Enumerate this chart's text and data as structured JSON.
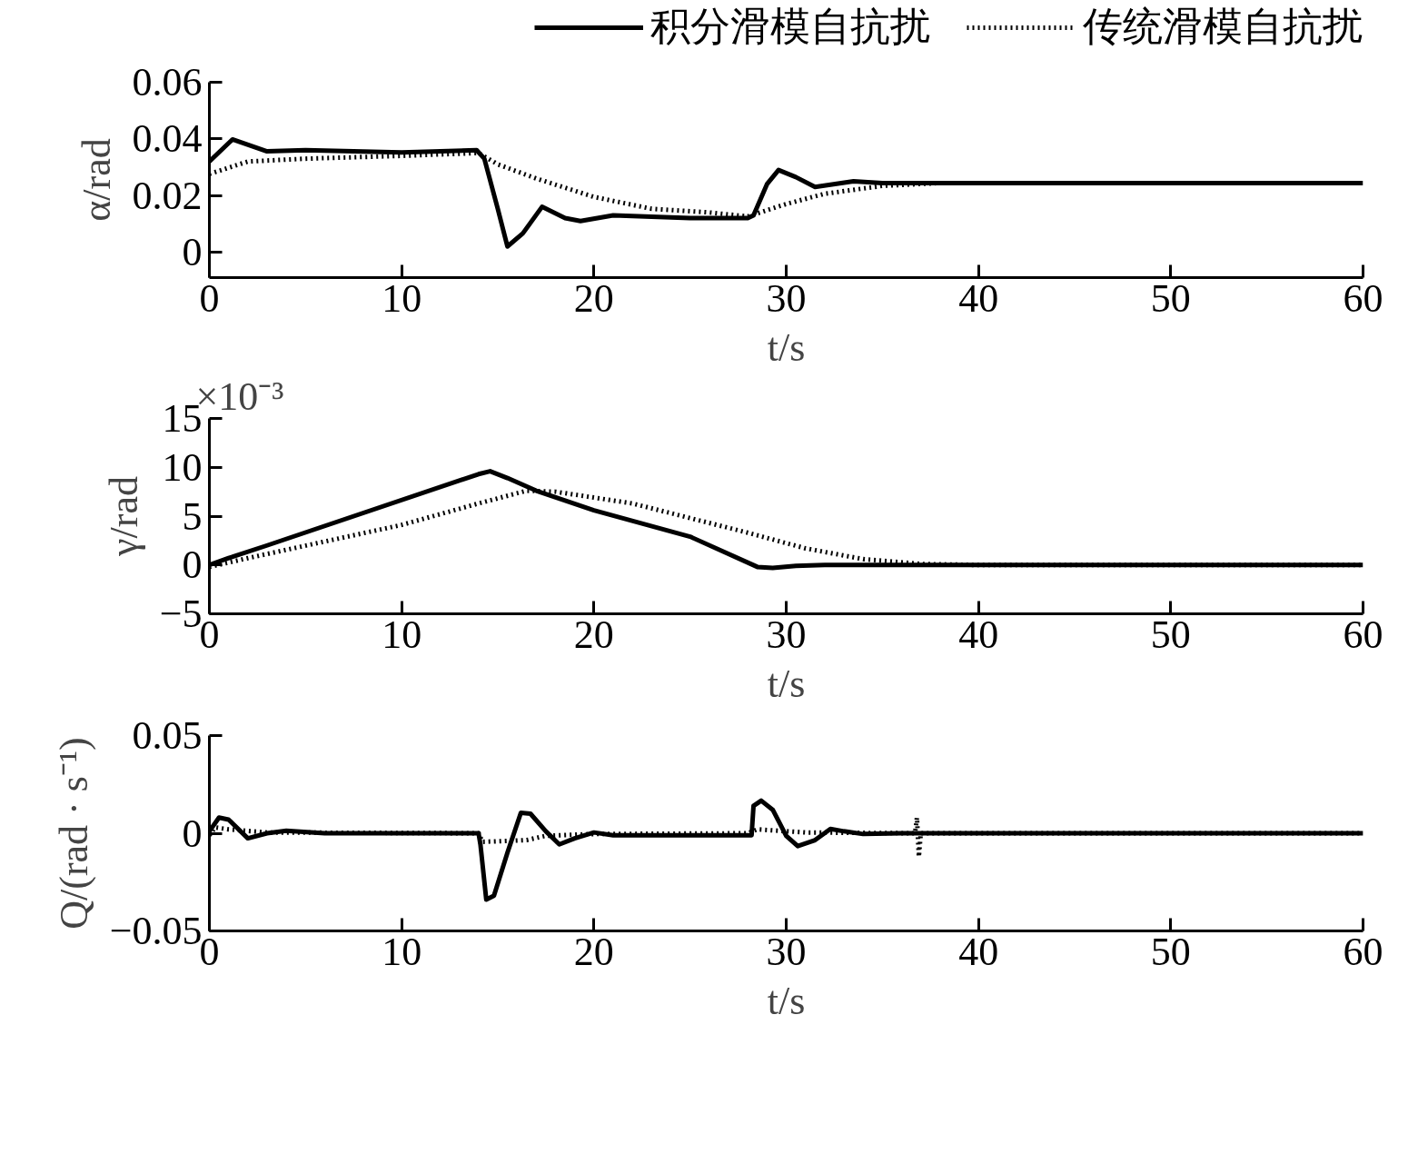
{
  "chart_data": [
    {
      "type": "line",
      "xlabel": "t/s",
      "ylabel": "α/rad",
      "xlim": [
        0,
        60
      ],
      "xticks": [
        0,
        10,
        20,
        30,
        40,
        50,
        60
      ],
      "ylim": [
        -0.009,
        0.06
      ],
      "yticks": [
        0,
        0.02,
        0.04,
        0.06
      ],
      "grid": false,
      "legend": "top",
      "marker": "none",
      "series": [
        {
          "name": "积分滑模自抗扰",
          "color": "#000000",
          "line_style": "solid",
          "x": [
            0,
            1.2,
            3,
            5,
            10,
            13.9,
            14.3,
            15,
            15.5,
            16.3,
            17.3,
            18.5,
            19.3,
            21,
            25,
            28,
            28.3,
            29,
            29.6,
            30.5,
            31.5,
            33.5,
            35,
            60
          ],
          "values": [
            0.032,
            0.0398,
            0.0356,
            0.036,
            0.0352,
            0.036,
            0.033,
            0.0153,
            0.002,
            0.0066,
            0.016,
            0.012,
            0.011,
            0.013,
            0.012,
            0.012,
            0.013,
            0.024,
            0.029,
            0.0265,
            0.023,
            0.025,
            0.0244,
            0.0244
          ]
        },
        {
          "name": "传统滑模自抗扰",
          "color": "#000000",
          "line_style": "dotted",
          "x": [
            0,
            2,
            5,
            10,
            14,
            15,
            17,
            20,
            23,
            26,
            28,
            30,
            32,
            35,
            38,
            60
          ],
          "values": [
            0.0276,
            0.032,
            0.033,
            0.034,
            0.035,
            0.031,
            0.026,
            0.0195,
            0.0153,
            0.014,
            0.0126,
            0.017,
            0.0206,
            0.0234,
            0.0244,
            0.0244
          ]
        }
      ]
    },
    {
      "type": "line",
      "xlabel": "t/s",
      "ylabel": "γ/rad",
      "annotations": [
        "×10⁻³"
      ],
      "xlim": [
        0,
        60
      ],
      "xticks": [
        0,
        10,
        20,
        30,
        40,
        50,
        60
      ],
      "ylim": [
        -5,
        15
      ],
      "yticks": [
        {
          "value": -5,
          "label": "−5"
        },
        0,
        5,
        10,
        15
      ],
      "grid": false,
      "legend": false,
      "marker": "none",
      "series": [
        {
          "color": "#000000",
          "line_style": "solid",
          "x": [
            0,
            1,
            3,
            14,
            14.6,
            15.5,
            17,
            20,
            25,
            28.5,
            29.3,
            30.5,
            32,
            60
          ],
          "values": [
            0,
            0.7,
            2,
            9.3,
            9.6,
            8.9,
            7.6,
            5.6,
            2.9,
            -0.2,
            -0.3,
            -0.1,
            0,
            0
          ]
        },
        {
          "color": "#000000",
          "line_style": "dotted",
          "x": [
            0,
            2,
            10,
            14,
            16.5,
            18,
            22,
            25,
            28,
            31,
            34,
            37,
            40,
            60
          ],
          "values": [
            -0.2,
            0.7,
            4.1,
            6.3,
            7.6,
            7.5,
            6.3,
            4.8,
            3.3,
            1.7,
            0.6,
            0.1,
            0,
            0
          ]
        }
      ]
    },
    {
      "type": "line",
      "xlabel": "t/s",
      "ylabel": "Q/(rad · s⁻¹)",
      "xlim": [
        0,
        60
      ],
      "xticks": [
        0,
        10,
        20,
        30,
        40,
        50,
        60
      ],
      "ylim": [
        -0.05,
        0.05
      ],
      "yticks": [
        {
          "value": -0.05,
          "label": "−0.05"
        },
        0,
        0.05
      ],
      "grid": false,
      "legend": false,
      "marker": "none",
      "series": [
        {
          "color": "#000000",
          "line_style": "solid",
          "x": [
            0,
            0.5,
            1,
            2,
            3,
            4,
            6,
            14,
            14.1,
            14.4,
            14.8,
            15.5,
            16.2,
            16.7,
            17.5,
            18.2,
            19,
            20,
            21,
            28.2,
            28.3,
            28.7,
            29.3,
            30,
            30.6,
            31.5,
            32.3,
            33,
            34,
            36,
            60
          ],
          "values": [
            0.001,
            0.008,
            0.007,
            -0.0026,
            0,
            0.0013,
            0,
            0,
            -0.006,
            -0.034,
            -0.032,
            -0.01,
            0.0105,
            0.01,
            0.001,
            -0.0057,
            -0.0026,
            0.0004,
            -0.001,
            -0.001,
            0.014,
            0.0167,
            0.012,
            -0.0013,
            -0.0066,
            -0.0035,
            0.0022,
            0.001,
            -0.0004,
            0,
            0
          ]
        },
        {
          "color": "#000000",
          "line_style": "dotted",
          "x": [
            0,
            0.3,
            1,
            3,
            14,
            14.2,
            16.5,
            17.5,
            20,
            28,
            28.5,
            31,
            36.7,
            36.8,
            36.9,
            37,
            60
          ],
          "values": [
            -0.001,
            0.003,
            0.002,
            0.0004,
            0,
            -0.0044,
            -0.0035,
            -0.0013,
            -0.0004,
            0,
            0.002,
            0.0004,
            0,
            0.008,
            -0.012,
            0,
            0
          ]
        }
      ]
    }
  ]
}
